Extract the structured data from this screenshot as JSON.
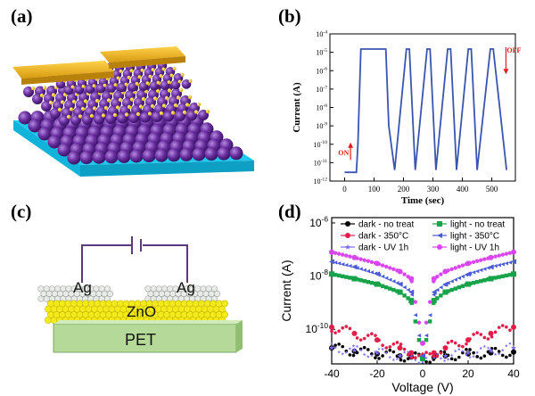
{
  "panels": {
    "a": {
      "label": "(a)"
    },
    "b": {
      "label": "(b)"
    },
    "c": {
      "label": "(c)",
      "electrode_left": "Ag",
      "electrode_right": "Ag",
      "layer": "ZnO",
      "substrate": "PET"
    },
    "d": {
      "label": "(d)"
    }
  },
  "colors": {
    "electrode_gold": "#e7b52b",
    "sphere_purple": "#6a2fa0",
    "substrate_cyan": "#1ec8ef",
    "zno_yellow": "#f2ea1a",
    "pet_green": "#b4d998"
  },
  "chart_data": [
    {
      "type": "line",
      "panel": "b",
      "xlabel": "Time (sec)",
      "ylabel": "Current (A)",
      "xlim": [
        -50,
        580
      ],
      "ylim_log10": [
        -12,
        -4
      ],
      "x_ticks": [
        0,
        100,
        200,
        300,
        400,
        500
      ],
      "y_tick_labels": [
        "10-12",
        "10-11",
        "10-10",
        "10-9",
        "10-8",
        "10-7",
        "10-6",
        "10-5",
        "10-4"
      ],
      "annotations": [
        "ON",
        "OFF"
      ],
      "series": [
        {
          "color": "#3a55b0",
          "x": [
            0,
            40,
            45,
            55,
            140,
            150,
            170,
            210,
            220,
            240,
            280,
            290,
            310,
            350,
            360,
            380,
            420,
            430,
            450,
            495,
            505,
            550
          ],
          "y": [
            3e-12,
            3e-12,
            1e-10,
            1.5e-05,
            1.5e-05,
            1e-09,
            4e-12,
            1.5e-05,
            1.5e-05,
            4e-12,
            1.5e-05,
            1.5e-05,
            4e-12,
            1.5e-05,
            1.5e-05,
            4e-12,
            1.5e-05,
            1.5e-05,
            4e-12,
            1.5e-05,
            1.5e-05,
            4e-12
          ]
        }
      ]
    },
    {
      "type": "scatter",
      "panel": "d",
      "xlabel": "Voltage (V)",
      "ylabel": "Current (A)",
      "xlim": [
        -40,
        40
      ],
      "ylim_log10": [
        -11.3,
        -5.8
      ],
      "x_ticks": [
        -40,
        -20,
        0,
        20,
        40
      ],
      "y_tick_labels": [
        "10-10",
        "10-8",
        "10-6"
      ],
      "series": [
        {
          "name": "dark - no treat",
          "color": "#000000",
          "marker": "circle",
          "x": [
            -40,
            -30,
            -20,
            -10,
            -5,
            0,
            5,
            10,
            20,
            30,
            40
          ],
          "y": [
            2e-11,
            1.5e-11,
            1.2e-11,
            1e-11,
            9e-12,
            8e-12,
            9e-12,
            1e-11,
            1.2e-11,
            1.3e-11,
            1.4e-11
          ]
        },
        {
          "name": "light - no treat",
          "color": "#16a34a",
          "marker": "square",
          "x": [
            -40,
            -30,
            -20,
            -10,
            -5,
            0,
            5,
            10,
            20,
            30,
            40
          ],
          "y": [
            1.2e-08,
            8e-09,
            5e-09,
            2.5e-09,
            1.2e-09,
            8e-12,
            1.2e-09,
            2.5e-09,
            5e-09,
            8e-09,
            1.2e-08
          ]
        },
        {
          "name": "dark - 350°C",
          "color": "#e11d48",
          "marker": "circle",
          "x": [
            -40,
            -30,
            -20,
            -10,
            -5,
            0,
            5,
            10,
            20,
            30,
            40
          ],
          "y": [
            1.2e-10,
            7e-11,
            4e-11,
            2e-11,
            1.3e-11,
            8e-12,
            1.3e-11,
            2e-11,
            4e-11,
            7e-11,
            1.2e-10
          ]
        },
        {
          "name": "light - 350°C",
          "color": "#4b5bd6",
          "marker": "triangle-left",
          "x": [
            -40,
            -30,
            -20,
            -10,
            -5,
            0,
            5,
            10,
            20,
            30,
            40
          ],
          "y": [
            3.5e-08,
            2.2e-08,
            1.2e-08,
            5e-09,
            2.5e-09,
            1e-11,
            2.5e-09,
            5e-09,
            1.2e-08,
            2.2e-08,
            3.5e-08
          ]
        },
        {
          "name": "dark - UV 1h",
          "color": "#7c6cf0",
          "marker": "star",
          "x": [
            -40,
            -30,
            -20,
            -10,
            -5,
            0,
            5,
            10,
            20,
            30,
            40
          ],
          "y": [
            2e-11,
            1.6e-11,
            1.3e-11,
            1e-11,
            9e-12,
            8e-12,
            9e-12,
            1e-11,
            1.3e-11,
            1.6e-11,
            2e-11
          ]
        },
        {
          "name": "light - UV 1h",
          "color": "#d946ef",
          "marker": "circle",
          "x": [
            -40,
            -30,
            -20,
            -10,
            -5,
            0,
            5,
            10,
            20,
            30,
            40
          ],
          "y": [
            8e-08,
            5e-08,
            3e-08,
            1.5e-08,
            8e-09,
            3e-11,
            8e-09,
            1.5e-08,
            3e-08,
            5e-08,
            8e-08
          ]
        }
      ]
    }
  ]
}
